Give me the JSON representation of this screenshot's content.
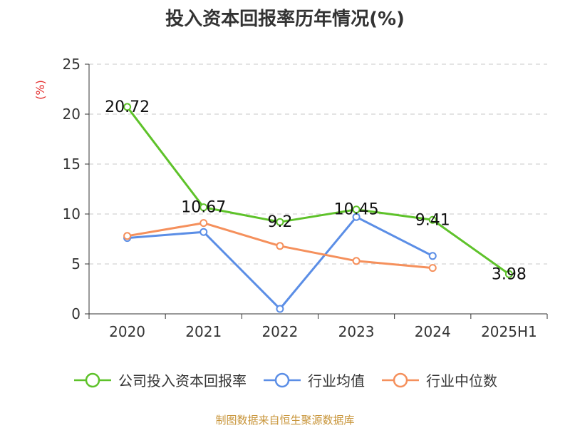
{
  "title": "投入资本回报率历年情况(%)",
  "source": "制图数据来自恒生聚源数据库",
  "colors": {
    "company": "#5ec22a",
    "industry_avg": "#5b8ee6",
    "industry_median": "#f5905c",
    "grid": "#c8c8c8",
    "axis": "#333333",
    "unit": "#e32d2d"
  },
  "chart_data": {
    "type": "line",
    "title": "投入资本回报率历年情况(%)",
    "ylabel": "(%)",
    "xlabel": "",
    "ylim": [
      0,
      25
    ],
    "yticks": [
      0,
      5,
      10,
      15,
      20,
      25
    ],
    "grid": true,
    "legend_position": "bottom",
    "categories": [
      "2020",
      "2021",
      "2022",
      "2023",
      "2024",
      "2025H1"
    ],
    "series": [
      {
        "name": "公司投入资本回报率",
        "color_key": "company",
        "icon": "circle-line-icon",
        "values": [
          20.72,
          10.67,
          9.2,
          10.45,
          9.41,
          3.98
        ],
        "labels": [
          "20.72",
          "10.67",
          "9.2",
          "10.45",
          "9.41",
          "3.98"
        ]
      },
      {
        "name": "行业均值",
        "color_key": "industry_avg",
        "icon": "circle-line-icon",
        "values": [
          7.6,
          8.2,
          0.5,
          9.7,
          5.8,
          null
        ]
      },
      {
        "name": "行业中位数",
        "color_key": "industry_median",
        "icon": "circle-line-icon",
        "values": [
          7.8,
          9.1,
          6.8,
          5.3,
          4.6,
          null
        ]
      }
    ]
  }
}
